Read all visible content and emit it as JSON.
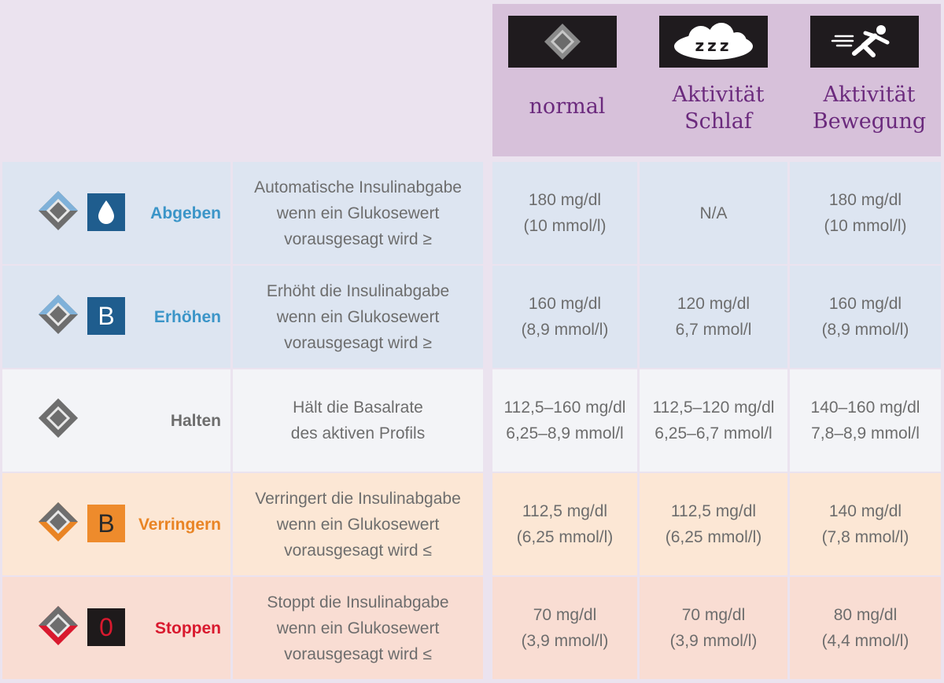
{
  "colors": {
    "background": "#ebe3ef",
    "header_bg": "#d7c1da",
    "header_text": "#6b2a7d",
    "icon_box": "#1f1b1e",
    "body_text": "#6d6d6d"
  },
  "modes": [
    {
      "label": "normal",
      "icon": "diamond-icon"
    },
    {
      "label": "Aktivität\nSchlaf",
      "icon": "zzz-cloud-icon",
      "icon_text": "zzz"
    },
    {
      "label": "Aktivität\nBewegung",
      "icon": "running-person-icon"
    }
  ],
  "rows": [
    {
      "status": "Abgeben",
      "status_color": "#3b95c8",
      "cell_bg": "#dde5f1",
      "badge_icon": "droplet-icon",
      "badge_bg": "#1f5d8e",
      "badge_text": "",
      "description": "Automatische Insulinabgabe\nwenn ein Glukosewert\nvorausgesagt wird ≥",
      "values": [
        "180 mg/dl\n(10 mmol/l)",
        "N/A",
        "180 mg/dl\n(10 mmol/l)"
      ]
    },
    {
      "status": "Erhöhen",
      "status_color": "#3b95c8",
      "cell_bg": "#dde5f1",
      "badge_icon": "",
      "badge_bg": "#1f5d8e",
      "badge_text": "B",
      "description": "Erhöht die Insulinabgabe\nwenn ein Glukosewert\nvorausgesagt wird ≥",
      "values": [
        "160 mg/dl\n(8,9 mmol/l)",
        "120 mg/dl\n6,7 mmol/l",
        "160 mg/dl\n(8,9 mmol/l)"
      ]
    },
    {
      "status": "Halten",
      "status_color": "#6d6d6d",
      "cell_bg": "#f3f4f7",
      "badge_icon": "",
      "badge_bg": "",
      "badge_text": "",
      "description": "Hält die Basalrate\ndes aktiven Profils",
      "values": [
        "112,5–160 mg/dl\n6,25–8,9 mmol/l",
        "112,5–120 mg/dl\n6,25–6,7 mmol/l",
        "140–160 mg/dl\n7,8–8,9 mmol/l"
      ]
    },
    {
      "status": "Verringern",
      "status_color": "#e98424",
      "cell_bg": "#fce7d5",
      "badge_icon": "",
      "badge_bg": "#ee8b2c",
      "badge_text": "B",
      "description": "Verringert die Insulinabgabe\nwenn ein Glukosewert\nvorausgesagt wird ≤",
      "values": [
        "112,5 mg/dl\n(6,25 mmol/l)",
        "112,5 mg/dl\n(6,25 mmol/l)",
        "140 mg/dl\n(7,8 mmol/l)"
      ]
    },
    {
      "status": "Stoppen",
      "status_color": "#d9192e",
      "cell_bg": "#f9ddd3",
      "badge_icon": "",
      "badge_bg": "#1e1a1b",
      "badge_text": "0",
      "description": "Stoppt die Insulinabgabe\nwenn ein Glukosewert\nvorausgesagt wird ≤",
      "values": [
        "70 mg/dl\n(3,9 mmol/l)",
        "70 mg/dl\n(3,9 mmol/l)",
        "80 mg/dl\n(4,4 mmol/l)"
      ]
    }
  ]
}
